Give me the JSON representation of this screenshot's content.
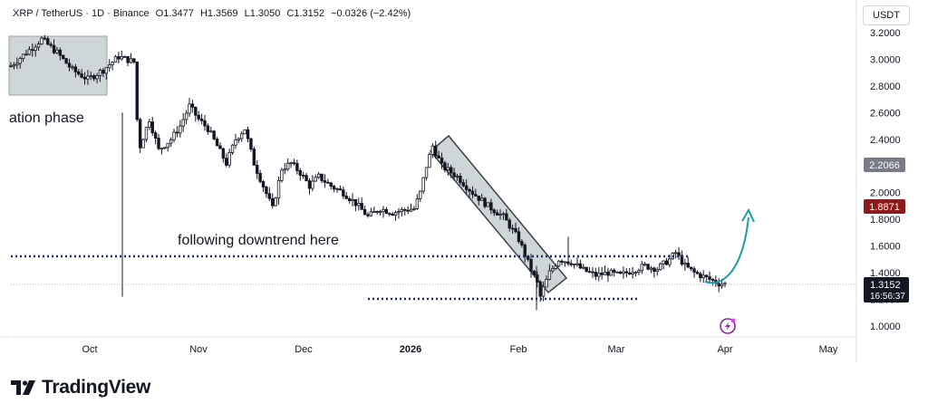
{
  "header": {
    "symbol": "XRP / TetherUS · 1D · Binance",
    "open": "O1.3477",
    "high": "H1.3569",
    "low": "L1.3050",
    "close": "C1.3152",
    "change": "−0.0326 (−2.42%)"
  },
  "currency_label": "USDT",
  "brand": "TradingView",
  "annotations": {
    "phase_text": "ation phase",
    "downtrend_text": "following downtrend here"
  },
  "price_labels": {
    "grey": "2.2066",
    "red": "1.8871",
    "current_price": "1.3152",
    "countdown": "16:56:37"
  },
  "colors": {
    "up": "#131722",
    "down": "#131722",
    "dotted_line": "#1e2a78",
    "arrow": "#1a9da6",
    "grey_label": "#787b86",
    "red_label": "#8b1a1a",
    "current_label": "#131722",
    "box_fill": "#cfd6d8"
  },
  "chart_data": {
    "type": "candlestick",
    "x_tick_labels": [
      "Oct",
      "Nov",
      "Dec",
      "2026",
      "Feb",
      "Mar",
      "Apr",
      "May"
    ],
    "y_tick_labels": [
      "3.2000",
      "3.0000",
      "2.8000",
      "2.6000",
      "2.4000",
      "2.2000",
      "2.0000",
      "1.8000",
      "1.6000",
      "1.4000",
      "1.2000",
      "1.0000"
    ],
    "ylim": [
      0.95,
      3.25
    ],
    "approx_close_path": [
      [
        0,
        2.95
      ],
      [
        5,
        3.05
      ],
      [
        10,
        3.15
      ],
      [
        15,
        3.05
      ],
      [
        20,
        2.92
      ],
      [
        25,
        2.85
      ],
      [
        30,
        2.92
      ],
      [
        35,
        3.02
      ],
      [
        40,
        2.98
      ],
      [
        41,
        2.55
      ],
      [
        42,
        2.35
      ],
      [
        45,
        2.55
      ],
      [
        48,
        2.32
      ],
      [
        52,
        2.4
      ],
      [
        55,
        2.5
      ],
      [
        58,
        2.65
      ],
      [
        61,
        2.55
      ],
      [
        64,
        2.48
      ],
      [
        67,
        2.35
      ],
      [
        70,
        2.22
      ],
      [
        73,
        2.4
      ],
      [
        76,
        2.48
      ],
      [
        79,
        2.22
      ],
      [
        82,
        2.05
      ],
      [
        85,
        1.88
      ],
      [
        88,
        2.18
      ],
      [
        91,
        2.22
      ],
      [
        94,
        2.15
      ],
      [
        97,
        2.05
      ],
      [
        100,
        2.12
      ],
      [
        104,
        2.05
      ],
      [
        108,
        2.0
      ],
      [
        112,
        1.92
      ],
      [
        116,
        1.82
      ],
      [
        120,
        1.88
      ],
      [
        124,
        1.85
      ],
      [
        128,
        1.87
      ],
      [
        131,
        1.88
      ],
      [
        133,
        2.0
      ],
      [
        135,
        2.2
      ],
      [
        137,
        2.35
      ],
      [
        140,
        2.2
      ],
      [
        145,
        2.12
      ],
      [
        150,
        2.0
      ],
      [
        155,
        1.9
      ],
      [
        160,
        1.82
      ],
      [
        165,
        1.65
      ],
      [
        169,
        1.42
      ],
      [
        171,
        1.32
      ],
      [
        172,
        1.22
      ],
      [
        175,
        1.4
      ],
      [
        178,
        1.5
      ],
      [
        182,
        1.48
      ],
      [
        186,
        1.42
      ],
      [
        190,
        1.38
      ],
      [
        194,
        1.4
      ],
      [
        198,
        1.38
      ],
      [
        202,
        1.42
      ],
      [
        206,
        1.45
      ],
      [
        210,
        1.43
      ],
      [
        214,
        1.5
      ],
      [
        216,
        1.55
      ],
      [
        219,
        1.45
      ],
      [
        222,
        1.4
      ],
      [
        226,
        1.36
      ],
      [
        230,
        1.32
      ],
      [
        232,
        1.3152
      ]
    ]
  }
}
